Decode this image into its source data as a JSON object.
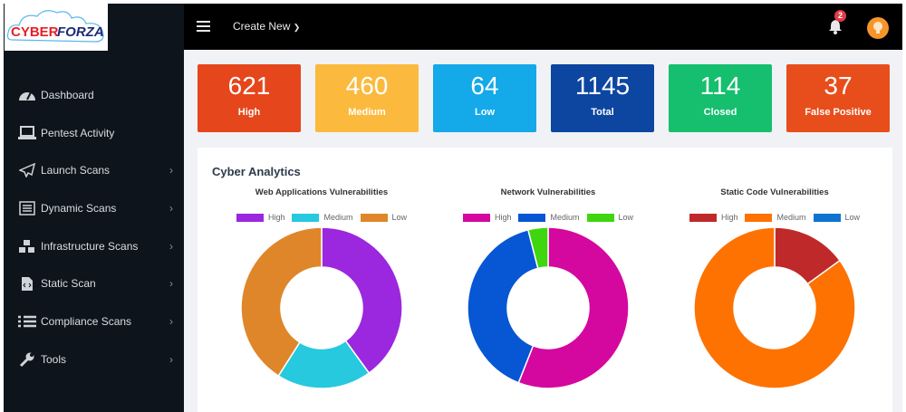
{
  "logo": {
    "text_left": "CYBER",
    "text_right": "FORZA"
  },
  "sidebar": {
    "items": [
      {
        "label": "Dashboard",
        "icon": "tachometer-icon",
        "chevron": false
      },
      {
        "label": "Pentest Activity",
        "icon": "laptop-icon",
        "chevron": false
      },
      {
        "label": "Launch Scans",
        "icon": "paper-plane-icon",
        "chevron": true
      },
      {
        "label": "Dynamic Scans",
        "icon": "list-alt-icon",
        "chevron": true
      },
      {
        "label": "Infrastructure Scans",
        "icon": "cubes-icon",
        "chevron": true
      },
      {
        "label": "Static Scan",
        "icon": "file-code-icon",
        "chevron": true
      },
      {
        "label": "Compliance Scans",
        "icon": "list-icon",
        "chevron": true
      },
      {
        "label": "Tools",
        "icon": "wrench-icon",
        "chevron": true
      }
    ]
  },
  "topbar": {
    "create_label": "Create New",
    "notification_count": "2"
  },
  "cards": [
    {
      "value": "621",
      "label": "High",
      "color": "#e5461c"
    },
    {
      "value": "460",
      "label": "Medium",
      "color": "#fbba3d"
    },
    {
      "value": "64",
      "label": "Low",
      "color": "#14a9e9"
    },
    {
      "value": "1145",
      "label": "Total",
      "color": "#0d46a0"
    },
    {
      "value": "114",
      "label": "Closed",
      "color": "#15bf6e"
    },
    {
      "value": "37",
      "label": "False Positive",
      "color": "#e84e1c"
    }
  ],
  "panel": {
    "title": "Cyber Analytics"
  },
  "chart_data": [
    {
      "type": "pie",
      "title": "Web Applications Vulnerabilities",
      "categories": [
        "High",
        "Medium",
        "Low"
      ],
      "values": [
        40,
        19,
        41
      ],
      "colors": [
        "#9b27de",
        "#26c9de",
        "#e0862a"
      ],
      "legend": "top"
    },
    {
      "type": "pie",
      "title": "Network Vulnerabilities",
      "categories": [
        "High",
        "Medium",
        "Low"
      ],
      "values": [
        56,
        40,
        4
      ],
      "colors": [
        "#d4079f",
        "#0756d4",
        "#3fd60f"
      ],
      "legend": "top"
    },
    {
      "type": "pie",
      "title": "Static Code Vulnerabilities",
      "categories": [
        "High",
        "Medium",
        "Low"
      ],
      "values": [
        15,
        85,
        0
      ],
      "colors": [
        "#c0292a",
        "#fd7200",
        "#0f74cf"
      ],
      "legend": "top"
    }
  ]
}
